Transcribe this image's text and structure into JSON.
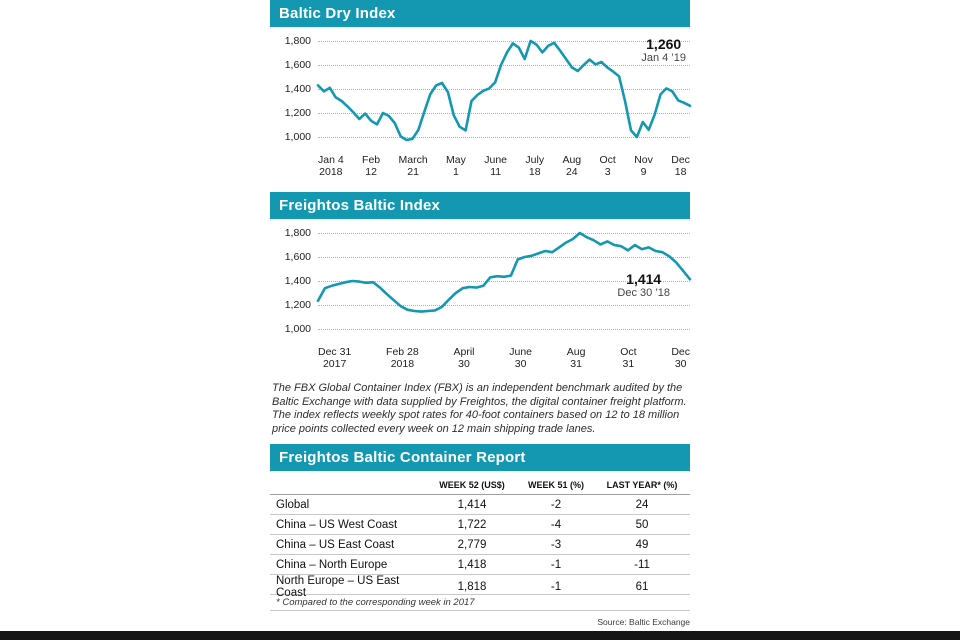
{
  "colors": {
    "accent": "#1497b1",
    "bottom_bar": "#151515",
    "grid": "#b3b3b3"
  },
  "description": "The FBX Global Container Index (FBX) is an independent benchmark audited by the Baltic Exchange with data supplied by Freightos, the digital container freight platform. The index reflects weekly spot rates for 40-foot containers based on 12 to 18 million price points collected every week on 12 main shipping trade lanes.",
  "chart_data": [
    {
      "type": "line",
      "title": "Baltic Dry Index",
      "series_name": "Baltic Dry Index (weekly)",
      "ylim": [
        950,
        1850
      ],
      "grid": "horizontal-dotted",
      "legend": "none",
      "line_color": "#1497b1",
      "y_tick_labels": [
        "1,800",
        "1,600",
        "1,400",
        "1,200",
        "1,000"
      ],
      "x_tick_labels": [
        "Jan 4\n2018",
        "Feb\n12",
        "March\n21",
        "May\n1",
        "June\n11",
        "July\n18",
        "Aug\n24",
        "Oct\n3",
        "Nov\n9",
        "Dec\n18"
      ],
      "end_annotation": {
        "value": "1,260",
        "date": "Jan 4 ’19"
      },
      "values": [
        1430,
        1380,
        1410,
        1330,
        1300,
        1255,
        1205,
        1150,
        1195,
        1135,
        1105,
        1200,
        1175,
        1115,
        1005,
        975,
        985,
        1060,
        1210,
        1355,
        1430,
        1450,
        1375,
        1180,
        1085,
        1055,
        1300,
        1350,
        1385,
        1405,
        1455,
        1600,
        1705,
        1780,
        1745,
        1650,
        1800,
        1770,
        1705,
        1760,
        1785,
        1720,
        1650,
        1580,
        1550,
        1600,
        1645,
        1605,
        1625,
        1580,
        1545,
        1505,
        1300,
        1055,
        1000,
        1125,
        1060,
        1185,
        1355,
        1405,
        1380,
        1305,
        1285,
        1260
      ]
    },
    {
      "type": "line",
      "title": "Freightos Baltic Index",
      "series_name": "Freightos Baltic Index (weekly)",
      "ylim": [
        950,
        1850
      ],
      "grid": "horizontal-dotted",
      "legend": "none",
      "line_color": "#1497b1",
      "y_tick_labels": [
        "1,800",
        "1,600",
        "1,400",
        "1,200",
        "1,000"
      ],
      "x_tick_labels": [
        "Dec 31\n2017",
        "Feb 28\n2018",
        "April\n30",
        "June\n30",
        "Aug\n31",
        "Oct\n31",
        "Dec\n30"
      ],
      "end_annotation": {
        "value": "1,414",
        "date": "Dec 30 ’18"
      },
      "values": [
        1235,
        1340,
        1360,
        1375,
        1390,
        1400,
        1395,
        1385,
        1390,
        1345,
        1290,
        1240,
        1190,
        1160,
        1150,
        1145,
        1150,
        1155,
        1185,
        1245,
        1300,
        1340,
        1350,
        1345,
        1360,
        1430,
        1440,
        1435,
        1445,
        1580,
        1600,
        1610,
        1630,
        1650,
        1640,
        1680,
        1720,
        1750,
        1800,
        1765,
        1740,
        1705,
        1730,
        1700,
        1690,
        1655,
        1700,
        1665,
        1680,
        1650,
        1640,
        1605,
        1555,
        1485,
        1414
      ]
    }
  ],
  "report": {
    "title": "Freightos Baltic Container Report",
    "columns": [
      "",
      "WEEK 52 (US$)",
      "WEEK 51 (%)",
      "LAST YEAR* (%)"
    ],
    "rows": [
      [
        "Global",
        "1,414",
        "-2",
        "24"
      ],
      [
        "China – US West Coast",
        "1,722",
        "-4",
        "50"
      ],
      [
        "China – US East Coast",
        "2,779",
        "-3",
        "49"
      ],
      [
        "China – North Europe",
        "1,418",
        "-1",
        "-11"
      ],
      [
        "North Europe – US East Coast",
        "1,818",
        "-1",
        "61"
      ]
    ],
    "footnote": "* Compared to the corresponding week in 2017"
  },
  "footer": {
    "source": "Source: Baltic Exchange"
  }
}
